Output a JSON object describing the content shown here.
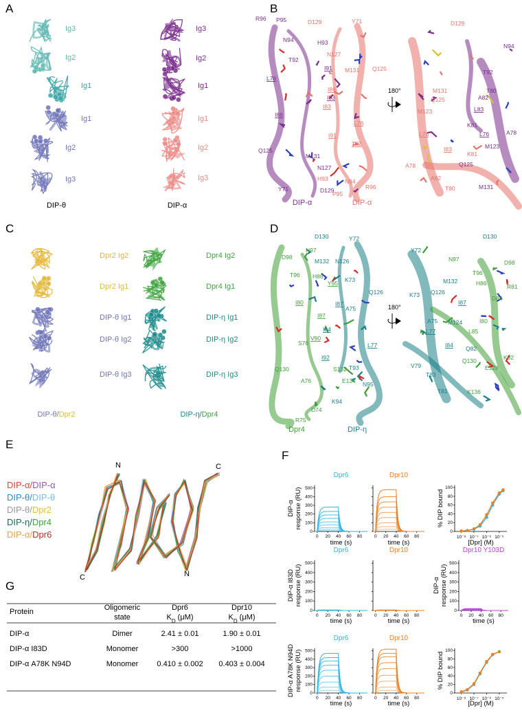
{
  "panel_labels": [
    "A",
    "B",
    "C",
    "D",
    "E",
    "F",
    "G"
  ],
  "panel_a": {
    "structures": [
      {
        "caption": "DIP-θ",
        "domains": [
          {
            "label": "Ig3",
            "color": "#5fb8b3"
          },
          {
            "label": "Ig2",
            "color": "#5fb8b3"
          },
          {
            "label": "Ig1",
            "color": "#3aa5a5"
          },
          {
            "label": "Ig1",
            "color": "#6f74b8"
          },
          {
            "label": "Ig2",
            "color": "#6f74b8"
          },
          {
            "label": "Ig3",
            "color": "#6f74b8"
          }
        ]
      },
      {
        "caption": "DIP-α",
        "domains": [
          {
            "label": "Ig3",
            "color": "#7a2d8c"
          },
          {
            "label": "Ig2",
            "color": "#7a2d8c"
          },
          {
            "label": "Ig1",
            "color": "#7a2d8c"
          },
          {
            "label": "Ig1",
            "color": "#ec8a86"
          },
          {
            "label": "Ig2",
            "color": "#ec8a86"
          },
          {
            "label": "Ig3",
            "color": "#ec8a86"
          }
        ]
      }
    ]
  },
  "panel_b": {
    "rotation": "180°",
    "captions": [
      {
        "text": "DIP-α",
        "color": "#7a2d8c"
      },
      {
        "text": "DIP-α",
        "color": "#e5736b"
      }
    ],
    "left_residues": [
      {
        "label": "R96",
        "color": "#7a2d8c"
      },
      {
        "label": "P95",
        "color": "#7a2d8c"
      },
      {
        "label": "D129",
        "color": "#e5736b"
      },
      {
        "label": "Y71",
        "color": "#e5736b"
      },
      {
        "label": "N94",
        "color": "#7a2d8c"
      },
      {
        "label": "H93",
        "color": "#7a2d8c"
      },
      {
        "label": "N127",
        "color": "#e5736b"
      },
      {
        "label": "T92",
        "color": "#7a2d8c"
      },
      {
        "label": "I91",
        "color": "#7a2d8c",
        "underline": true
      },
      {
        "label": "M131",
        "color": "#e5736b"
      },
      {
        "label": "Q125",
        "color": "#e5736b"
      },
      {
        "label": "L76",
        "color": "#7a2d8c",
        "underline": true
      },
      {
        "label": "I86",
        "color": "#e5736b",
        "underline": true
      },
      {
        "label": "I83",
        "color": "#7a2d8c",
        "underline": true
      },
      {
        "label": "I83",
        "color": "#e5736b",
        "underline": true
      },
      {
        "label": "I86",
        "color": "#7a2d8c",
        "underline": true
      },
      {
        "label": "L76",
        "color": "#e5736b",
        "underline": true
      },
      {
        "label": "I91",
        "color": "#e5736b",
        "underline": true
      },
      {
        "label": "T92",
        "color": "#e5736b",
        "underline": true
      },
      {
        "label": "Q125",
        "color": "#7a2d8c"
      },
      {
        "label": "M131",
        "color": "#7a2d8c"
      },
      {
        "label": "N127",
        "color": "#7a2d8c"
      },
      {
        "label": "N94",
        "color": "#e5736b"
      },
      {
        "label": "H93",
        "color": "#e5736b"
      },
      {
        "label": "D129",
        "color": "#7a2d8c"
      },
      {
        "label": "P95",
        "color": "#e5736b"
      },
      {
        "label": "R96",
        "color": "#e5736b"
      },
      {
        "label": "Y71",
        "color": "#7a2d8c"
      }
    ],
    "right_residues": [
      {
        "label": "D129",
        "color": "#e5736b"
      },
      {
        "label": "N94",
        "color": "#7a2d8c"
      },
      {
        "label": "T92",
        "color": "#7a2d8c"
      },
      {
        "label": "T80",
        "color": "#7a2d8c"
      },
      {
        "label": "M131",
        "color": "#e5736b"
      },
      {
        "label": "A82",
        "color": "#7a2d8c"
      },
      {
        "label": "Q125",
        "color": "#e5736b"
      },
      {
        "label": "L83",
        "color": "#7a2d8c",
        "underline": true
      },
      {
        "label": "M123",
        "color": "#e5736b"
      },
      {
        "label": "K81",
        "color": "#7a2d8c"
      },
      {
        "label": "L76",
        "color": "#7a2d8c",
        "underline": true
      },
      {
        "label": "A78",
        "color": "#7a2d8c"
      },
      {
        "label": "M123",
        "color": "#7a2d8c"
      },
      {
        "label": "L76",
        "color": "#e5736b",
        "underline": true
      },
      {
        "label": "I83",
        "color": "#e5736b",
        "underline": true
      },
      {
        "label": "K81",
        "color": "#e5736b"
      },
      {
        "label": "Q125",
        "color": "#7a2d8c"
      },
      {
        "label": "A78",
        "color": "#e5736b"
      },
      {
        "label": "A82",
        "color": "#e5736b"
      },
      {
        "label": "T80",
        "color": "#e5736b"
      },
      {
        "label": "M131",
        "color": "#7a2d8c"
      }
    ]
  },
  "panel_c": {
    "structures": [
      {
        "caption": [
          {
            "text": "DIP-θ",
            "color": "#6f74b8"
          },
          {
            "text": "/",
            "color": "#6f74b8"
          },
          {
            "text": "Dpr2",
            "color": "#e3b83a"
          }
        ],
        "domains": [
          {
            "label": "Dpr2 Ig2",
            "color": "#e3b83a"
          },
          {
            "label": "Dpr2 Ig1",
            "color": "#e3b83a"
          },
          {
            "label": "DIP-θ Ig1",
            "color": "#6f74b8"
          },
          {
            "label": "DIP-θ Ig2",
            "color": "#6f74b8"
          },
          {
            "label": "DIP-θ Ig3",
            "color": "#6f74b8"
          }
        ]
      },
      {
        "caption": [
          {
            "text": "DIP-η",
            "color": "#1a8a8a"
          },
          {
            "text": "/",
            "color": "#1a8a8a"
          },
          {
            "text": "Dpr4",
            "color": "#3fa33f"
          }
        ],
        "domains": [
          {
            "label": "Dpr4 Ig2",
            "color": "#3fa33f"
          },
          {
            "label": "Dpr4 Ig1",
            "color": "#3fa33f"
          },
          {
            "label": "DIP-η Ig1",
            "color": "#1a8a8a"
          },
          {
            "label": "DIP-η Ig2",
            "color": "#1a8a8a"
          },
          {
            "label": "DIP-η Ig3",
            "color": "#1a8a8a"
          }
        ]
      }
    ]
  },
  "panel_d": {
    "rotation": "180°",
    "captions": [
      {
        "text": "Dpr4",
        "color": "#3f9e35"
      },
      {
        "text": "DIP-η",
        "color": "#1a7f86"
      }
    ],
    "left_residues": [
      {
        "label": "D130",
        "color": "#1a7f86"
      },
      {
        "label": "Y72",
        "color": "#1a7f86"
      },
      {
        "label": "N97",
        "color": "#3f9e35"
      },
      {
        "label": "D98",
        "color": "#3f9e35"
      },
      {
        "label": "M132",
        "color": "#1a7f86"
      },
      {
        "label": "N126",
        "color": "#1a7f86"
      },
      {
        "label": "T96",
        "color": "#3f9e35"
      },
      {
        "label": "H86",
        "color": "#3f9e35"
      },
      {
        "label": "K73",
        "color": "#1a7f86"
      },
      {
        "label": "Q126",
        "color": "#1a7f86"
      },
      {
        "label": "Y95",
        "color": "#3f9e35",
        "underline": true
      },
      {
        "label": "I80",
        "color": "#3f9e35",
        "underline": true
      },
      {
        "label": "I87",
        "color": "#1a7f86",
        "underline": true
      },
      {
        "label": "A75",
        "color": "#1a7f86"
      },
      {
        "label": "I87",
        "color": "#3f9e35",
        "underline": true
      },
      {
        "label": "I84",
        "color": "#1a7f86",
        "underline": true
      },
      {
        "label": "V90",
        "color": "#3f9e35",
        "underline": true
      },
      {
        "label": "S76",
        "color": "#3f9e35"
      },
      {
        "label": "L77",
        "color": "#1a7f86",
        "underline": true
      },
      {
        "label": "I92",
        "color": "#1a7f86",
        "underline": true
      },
      {
        "label": "Q130",
        "color": "#3f9e35"
      },
      {
        "label": "T93",
        "color": "#1a7f86"
      },
      {
        "label": "S132",
        "color": "#3f9e35"
      },
      {
        "label": "A76",
        "color": "#3f9e35"
      },
      {
        "label": "E134",
        "color": "#3f9e35"
      },
      {
        "label": "N95",
        "color": "#1a7f86"
      },
      {
        "label": "K94",
        "color": "#1a7f86"
      },
      {
        "label": "D74",
        "color": "#3f9e35"
      },
      {
        "label": "R75",
        "color": "#3f9e35"
      }
    ],
    "right_residues": [
      {
        "label": "D130",
        "color": "#1a7f86"
      },
      {
        "label": "Y72",
        "color": "#1a7f86"
      },
      {
        "label": "N97",
        "color": "#3f9e35"
      },
      {
        "label": "D98",
        "color": "#3f9e35"
      },
      {
        "label": "T96",
        "color": "#3f9e35"
      },
      {
        "label": "M132",
        "color": "#1a7f86"
      },
      {
        "label": "H86",
        "color": "#3f9e35"
      },
      {
        "label": "R81",
        "color": "#3f9e35"
      },
      {
        "label": "K73",
        "color": "#1a7f86"
      },
      {
        "label": "Q126",
        "color": "#1a7f86"
      },
      {
        "label": "D84",
        "color": "#3f9e35"
      },
      {
        "label": "I87",
        "color": "#1a7f86",
        "underline": true
      },
      {
        "label": "A75",
        "color": "#1a7f86"
      },
      {
        "label": "M124",
        "color": "#1a7f86"
      },
      {
        "label": "I80",
        "color": "#3f9e35"
      },
      {
        "label": "L77",
        "color": "#1a7f86",
        "underline": true
      },
      {
        "label": "L85",
        "color": "#3f9e35"
      },
      {
        "label": "I84",
        "color": "#1a7f86",
        "underline": true
      },
      {
        "label": "Q82",
        "color": "#1a7f86"
      },
      {
        "label": "K82",
        "color": "#3f9e35"
      },
      {
        "label": "V79",
        "color": "#1a7f86"
      },
      {
        "label": "Q130",
        "color": "#3f9e35"
      },
      {
        "label": "E128",
        "color": "#3f9e35"
      },
      {
        "label": "T83",
        "color": "#1a7f86"
      },
      {
        "label": "T81",
        "color": "#1a7f86"
      },
      {
        "label": "K136",
        "color": "#3f9e35"
      }
    ]
  },
  "panel_e": {
    "termini": [
      "N",
      "C",
      "C",
      "N"
    ],
    "legend": [
      [
        {
          "text": "DIP-α",
          "color": "#e8413a"
        },
        {
          "text": "/",
          "color": "#e8413a"
        },
        {
          "text": "DIP-α",
          "color": "#9b59b6"
        }
      ],
      [
        {
          "text": "DIP-θ",
          "color": "#2a8bd0"
        },
        {
          "text": "/",
          "color": "#2a8bd0"
        },
        {
          "text": "DIP-θ",
          "color": "#7fb8e0"
        }
      ],
      [
        {
          "text": "DIP-θ",
          "color": "#999999"
        },
        {
          "text": "/",
          "color": "#999999"
        },
        {
          "text": "Dpr2",
          "color": "#e3c13a"
        }
      ],
      [
        {
          "text": "DIP-η",
          "color": "#1d6a4a"
        },
        {
          "text": "/",
          "color": "#1d6a4a"
        },
        {
          "text": "Dpr4",
          "color": "#3fa33f"
        }
      ],
      [
        {
          "text": "DIP-α",
          "color": "#f0a04a"
        },
        {
          "text": "/",
          "color": "#f0a04a"
        },
        {
          "text": "Dpr6",
          "color": "#c0302a"
        }
      ]
    ]
  },
  "panel_f": {
    "sensorgram_axes": {
      "xlabel": "time (s)",
      "xlim": [
        -5,
        95
      ],
      "xticks": [
        0,
        20,
        40,
        60,
        80
      ],
      "ylim": [
        0,
        530
      ],
      "yticks": [
        0,
        100,
        200,
        300,
        400,
        500
      ]
    },
    "binding_axes": {
      "xlabel": "[Dpr] (M)",
      "ylabel": "% DIP bound",
      "log": true,
      "xlim": [
        3e-09,
        4e-05
      ],
      "xticks": [
        {
          "value": 1e-08,
          "label": "10⁻⁸"
        },
        {
          "value": 1e-07,
          "label": "10⁻⁷"
        },
        {
          "value": 1e-06,
          "label": "10⁻⁶"
        },
        {
          "value": 1e-05,
          "label": "10⁻⁵"
        }
      ],
      "ylim": [
        0,
        105
      ],
      "yticks": [
        0,
        20,
        40,
        60,
        80,
        100
      ]
    },
    "rows": [
      {
        "ylabel": [
          "DIP-α",
          "response (RU)"
        ],
        "sensorgrams": [
          {
            "title": "Dpr6",
            "color": "#2bb5e6",
            "plateaus": [
              280,
              230,
              190,
              150,
              110,
              75,
              45,
              25,
              10
            ]
          },
          {
            "title": "Dpr10",
            "color": "#f07f1e",
            "plateaus": [
              480,
              400,
              340,
              280,
              220,
              160,
              100,
              55,
              25
            ]
          }
        ],
        "binding": {
          "series": [
            {
              "color": "#2bb5e6",
              "x": [
                1e-08,
                3e-08,
                1e-07,
                3e-07,
                1e-06,
                3e-06,
                1e-05,
                2e-05
              ],
              "values": [
                1,
                2,
                5,
                12,
                32,
                60,
                85,
                93
              ]
            },
            {
              "color": "#f07f1e",
              "x": [
                1e-08,
                3e-08,
                1e-07,
                3e-07,
                1e-06,
                3e-06,
                1e-05,
                2e-05
              ],
              "values": [
                1,
                2,
                6,
                15,
                38,
                65,
                88,
                95
              ]
            }
          ]
        }
      },
      {
        "ylabel": [
          "DIP-α I83D",
          "response (RU)"
        ],
        "sensorgrams": [
          {
            "title": "Dpr6",
            "color": "#2bb5e6",
            "plateaus": [
              6,
              4,
              3,
              2,
              1
            ]
          },
          {
            "title": "Dpr10",
            "color": "#f07f1e",
            "plateaus": [
              6,
              4,
              3,
              2,
              1
            ]
          }
        ],
        "extra": {
          "title": "Dpr10 Y103D",
          "color": "#c040e0",
          "ylabel": [
            "DIP-α",
            "response (RU)"
          ],
          "plateaus": [
            20,
            15,
            10,
            6,
            3
          ]
        }
      },
      {
        "ylabel": [
          "DIP-α A78K N94D",
          "response (RU)"
        ],
        "sensorgrams": [
          {
            "title": "Dpr6",
            "color": "#2bb5e6",
            "plateaus": [
              470,
              420,
              380,
              330,
              270,
              200,
              130,
              70,
              30
            ]
          },
          {
            "title": "Dpr10",
            "color": "#f07f1e",
            "plateaus": [
              520,
              470,
              430,
              360,
              290,
              210,
              140,
              70,
              30
            ]
          }
        ],
        "binding": {
          "series": [
            {
              "color": "#2bb5e6",
              "x": [
                1e-08,
                3e-08,
                1e-07,
                3e-07,
                1e-06,
                3e-06,
                1e-05
              ],
              "values": [
                2,
                7,
                20,
                45,
                72,
                90,
                97
              ]
            },
            {
              "color": "#f07f1e",
              "x": [
                1e-08,
                3e-08,
                1e-07,
                3e-07,
                1e-06,
                3e-06,
                1e-05
              ],
              "values": [
                3,
                8,
                22,
                47,
                74,
                91,
                97
              ]
            }
          ]
        }
      }
    ]
  },
  "panel_g": {
    "table": {
      "header": [
        [
          "Protein"
        ],
        [
          "Oligomeric",
          "state"
        ],
        [
          "Dpr6",
          [
            "K",
            "D",
            " (μM)"
          ]
        ],
        [
          "Dpr10",
          [
            "K",
            "D",
            " (μM)"
          ]
        ]
      ],
      "rows": [
        [
          "DIP-α",
          "Dimer",
          "2.41 ± 0.01",
          "1.90 ± 0.01"
        ],
        [
          "DIP-α I83D",
          "Monomer",
          ">300",
          ">1000"
        ],
        [
          "DIP-α A78K N94D",
          "Monomer",
          "0.410 ± 0.002",
          "0.403 ± 0.004"
        ]
      ]
    }
  }
}
